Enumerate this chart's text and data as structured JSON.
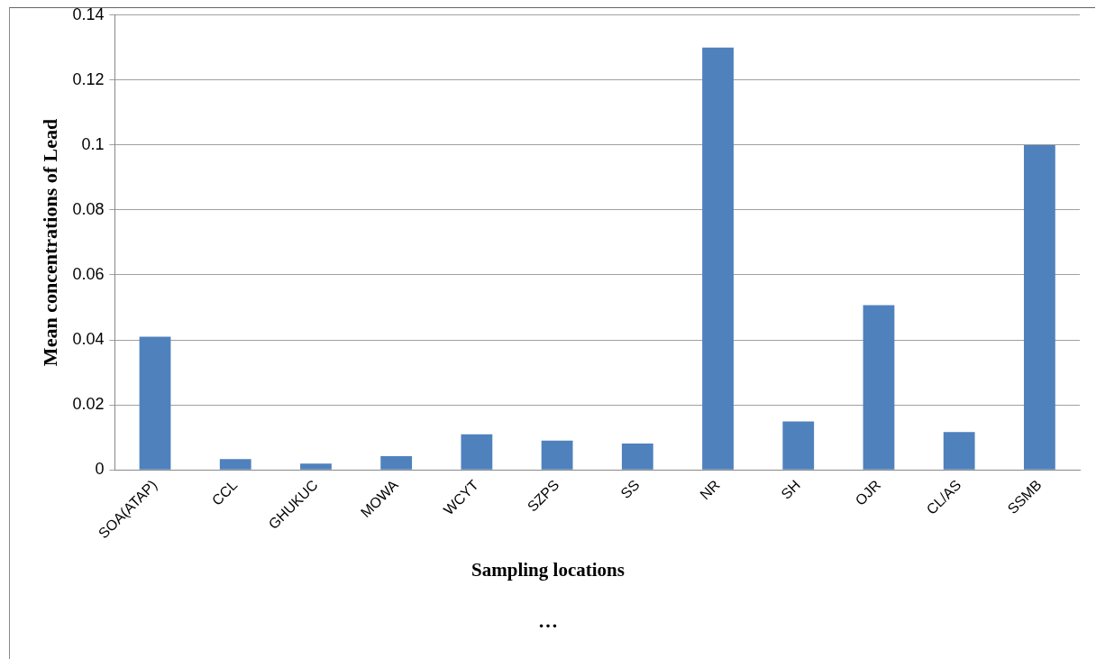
{
  "chart_data": {
    "type": "bar",
    "xlabel": "Sampling locations",
    "ylabel": "Mean concentrations of Lead",
    "categories": [
      "SOA(ATAP)",
      "CCL",
      "GHUKUC",
      "MOWA",
      "WCYT",
      "SZPS",
      "SS",
      "NR",
      "SH",
      "OJR",
      "CL/AS",
      "SSMB"
    ],
    "values": [
      0.041,
      0.0033,
      0.0019,
      0.0042,
      0.0109,
      0.009,
      0.0081,
      0.13,
      0.0149,
      0.0507,
      0.0116,
      0.1
    ],
    "color": "#4f81bd",
    "ylim": [
      0,
      0.14
    ],
    "yticks": [
      0,
      0.02,
      0.04,
      0.06,
      0.08,
      0.1,
      0.12,
      0.14
    ],
    "grid": "y",
    "annotations": [
      "…"
    ]
  }
}
